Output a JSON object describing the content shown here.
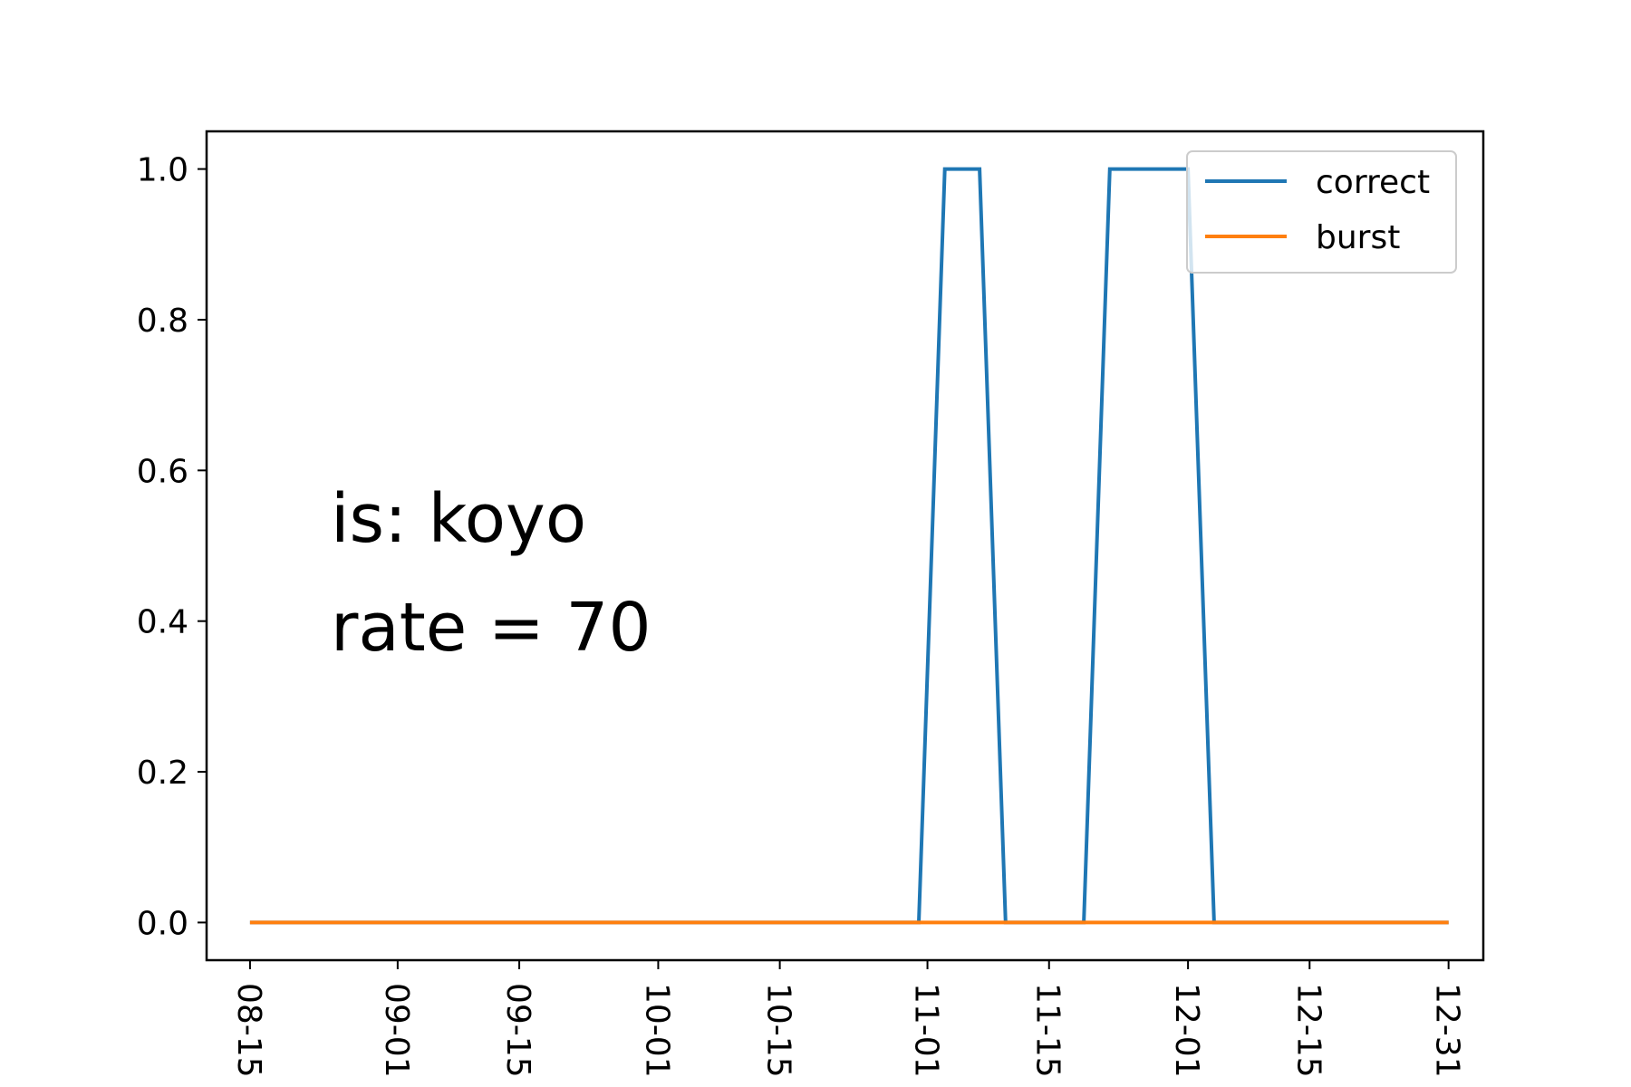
{
  "chart_data": {
    "type": "line",
    "x_type": "date",
    "x": [
      "08-15",
      "08-22",
      "08-29",
      "09-05",
      "09-12",
      "09-19",
      "09-26",
      "10-03",
      "10-10",
      "10-17",
      "10-24",
      "10-31",
      "11-03",
      "11-07",
      "11-10",
      "11-13",
      "11-16",
      "11-19",
      "11-22",
      "11-25",
      "11-28",
      "12-01",
      "12-04",
      "12-07",
      "12-14",
      "12-21",
      "12-28",
      "12-31"
    ],
    "series": [
      {
        "name": "correct",
        "color": "#1f77b4",
        "values": [
          0,
          0,
          0,
          0,
          0,
          0,
          0,
          0,
          0,
          0,
          0,
          0,
          1,
          1,
          0,
          0,
          0,
          0,
          1,
          1,
          1,
          1,
          0,
          0,
          0,
          0,
          0,
          0
        ]
      },
      {
        "name": "burst",
        "color": "#ff7f0e",
        "values": [
          0,
          0,
          0,
          0,
          0,
          0,
          0,
          0,
          0,
          0,
          0,
          0,
          0,
          0,
          0,
          0,
          0,
          0,
          0,
          0,
          0,
          0,
          0,
          0,
          0,
          0,
          0,
          0
        ]
      }
    ],
    "x_ticks": [
      "08-15",
      "09-01",
      "09-15",
      "10-01",
      "10-15",
      "11-01",
      "11-15",
      "12-01",
      "12-15",
      "12-31"
    ],
    "y_ticks": [
      "0.0",
      "0.2",
      "0.4",
      "0.6",
      "0.8",
      "1.0"
    ],
    "y_tick_values": [
      0,
      0.2,
      0.4,
      0.6,
      0.8,
      1.0
    ],
    "ylim": [
      -0.05,
      1.05
    ],
    "xlim": [
      "08-10",
      "01-04"
    ],
    "xlabel": "",
    "ylabel": "",
    "title": "",
    "grid": false,
    "legend_position": "top-right",
    "annotations": [
      "is: koyo",
      "rate = 70"
    ]
  }
}
